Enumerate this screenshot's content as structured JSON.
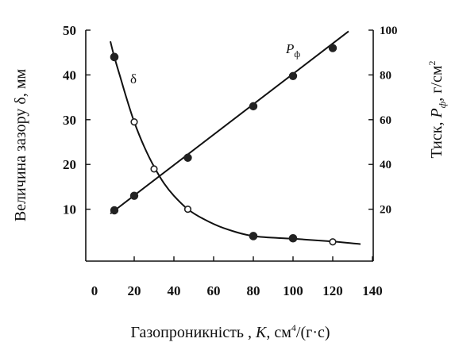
{
  "chart_data": {
    "type": "line",
    "xlabel_prefix": "Газопроникність , ",
    "xlabel_var": "K",
    "xlabel_unit_a": ", см",
    "xlabel_unit_sup": "4",
    "xlabel_unit_b": "/(г·с)",
    "ylabel_left": "Величина зазору δ, мм",
    "ylabel_right_prefix": "Тиск, ",
    "ylabel_right_var": "P",
    "ylabel_right_sub": "ф",
    "ylabel_right_unit": ", г/см",
    "ylabel_right_sup": "2",
    "xlim": [
      0,
      140
    ],
    "ylim_left": [
      0,
      50
    ],
    "ylim_right": [
      0,
      100
    ],
    "x_ticks": [
      0,
      20,
      40,
      60,
      80,
      100,
      120,
      140
    ],
    "y_left_ticks": [
      10,
      20,
      30,
      40,
      50
    ],
    "y_right_ticks": [
      20,
      40,
      60,
      80,
      100
    ],
    "grid": false,
    "series": [
      {
        "name": "δ",
        "axis": "left",
        "x": [
          10,
          20,
          30,
          47,
          80,
          100,
          120
        ],
        "y": [
          44,
          29.5,
          19,
          10,
          4,
          3.5,
          2.7
        ],
        "markers": [
          "filled",
          "open",
          "open",
          "open",
          "filled",
          "filled",
          "open"
        ],
        "curve_x": [
          8,
          10,
          13,
          16,
          20,
          25,
          30,
          35,
          40,
          47,
          55,
          65,
          80,
          100,
          120,
          134
        ],
        "curve_y": [
          47.5,
          44,
          39.5,
          35,
          29.5,
          24,
          19.5,
          15.8,
          13,
          10,
          7.8,
          5.8,
          4,
          3.4,
          2.8,
          2.2
        ]
      },
      {
        "name": "P",
        "name_sub": "ф",
        "axis": "right",
        "x": [
          10,
          20,
          47,
          80,
          100,
          120
        ],
        "y": [
          19.5,
          26,
          43,
          66,
          79.5,
          92
        ],
        "markers": [
          "filled",
          "filled",
          "filled",
          "filled",
          "filled",
          "filled"
        ],
        "line_x": [
          8,
          128
        ],
        "line_y": [
          18,
          99.5
        ]
      }
    ]
  }
}
